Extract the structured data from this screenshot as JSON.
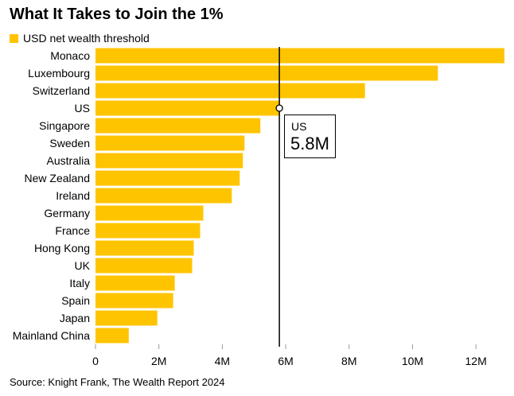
{
  "title": "What It Takes to Join the 1%",
  "source": "Source: Knight Frank, The Wealth Report 2024",
  "colors": {
    "bar": "#FFC400",
    "axis_line": "#000000",
    "grid": "#d9d9d9"
  },
  "chart_data": {
    "type": "bar",
    "orientation": "horizontal",
    "title": "What It Takes to Join the 1%",
    "legend": [
      "USD net wealth threshold"
    ],
    "legend_placement": "top-left",
    "series": [
      {
        "name": "USD net wealth threshold",
        "values": [
          12.9,
          10.8,
          8.5,
          5.8,
          5.2,
          4.7,
          4.65,
          4.55,
          4.3,
          3.4,
          3.3,
          3.1,
          3.05,
          2.5,
          2.45,
          1.95,
          1.05
        ]
      }
    ],
    "categories": [
      "Monaco",
      "Luxembourg",
      "Switzerland",
      "US",
      "Singapore",
      "Sweden",
      "Australia",
      "New Zealand",
      "Ireland",
      "Germany",
      "France",
      "Hong Kong",
      "UK",
      "Italy",
      "Spain",
      "Japan",
      "Mainland China"
    ],
    "xlim": [
      0,
      12.9
    ],
    "xticks": [
      0,
      2,
      4,
      6,
      8,
      10,
      12
    ],
    "xtick_labels": [
      "0",
      "2M",
      "4M",
      "6M",
      "8M",
      "10M",
      "12M"
    ],
    "grid": false,
    "xlabel": "",
    "ylabel": "",
    "highlight": {
      "category": "US",
      "value": 5.8,
      "label": "US",
      "value_label": "5.8M"
    }
  }
}
